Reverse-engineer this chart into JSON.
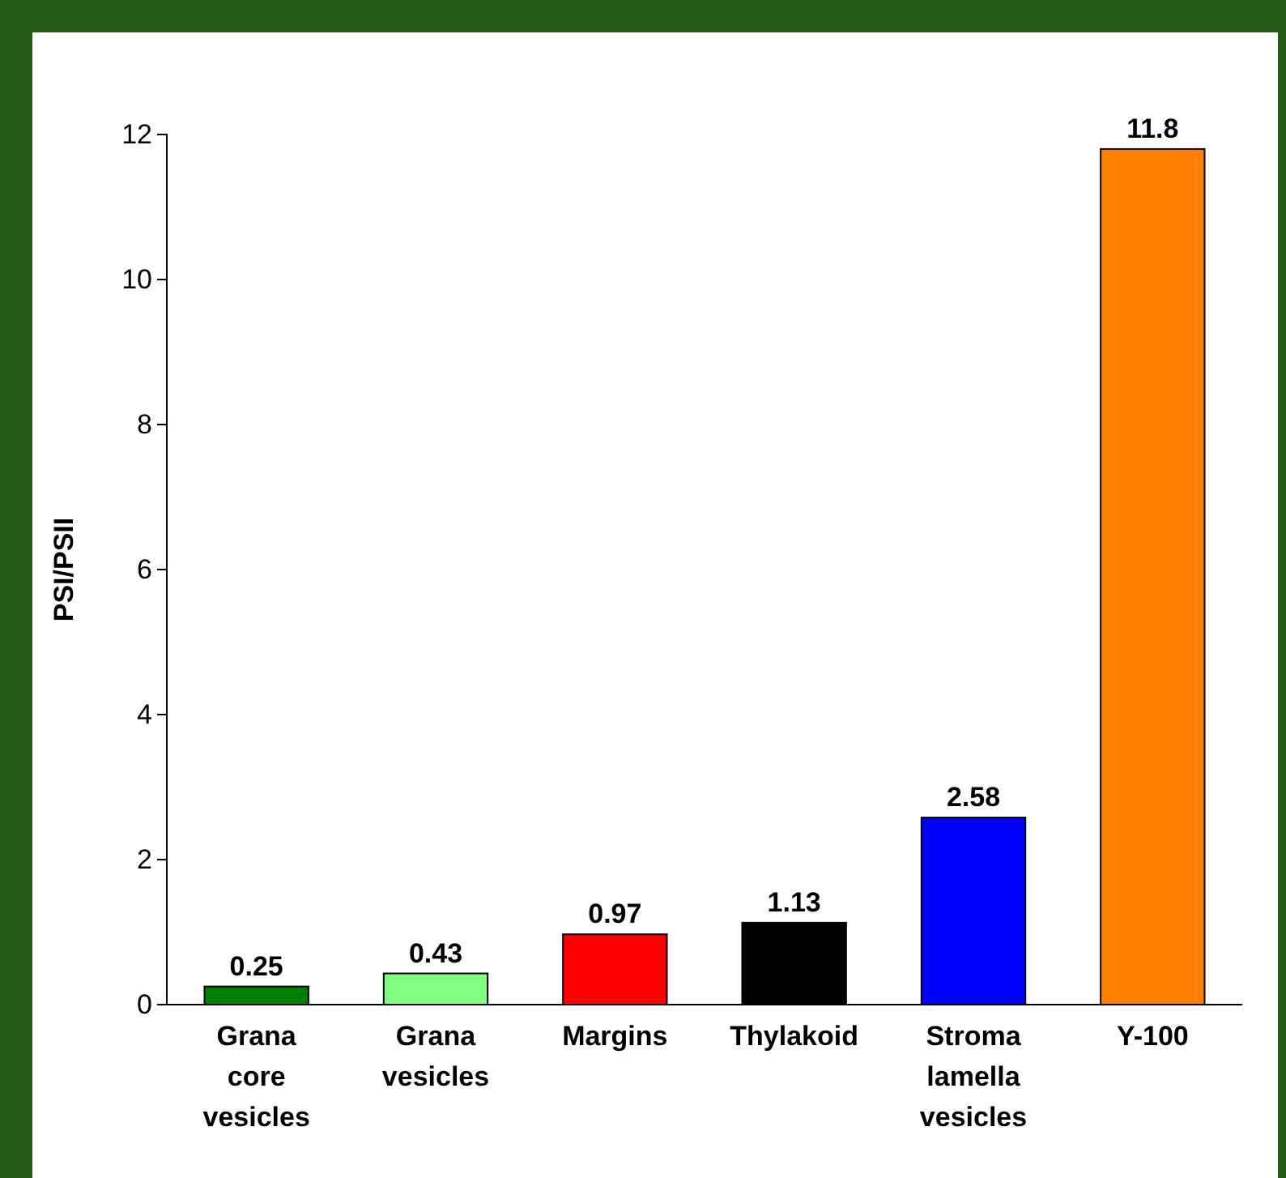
{
  "chart_data": {
    "type": "bar",
    "ylabel": "PSI/PSII",
    "categories": [
      "Grana core vesicles",
      "Grana vesicles",
      "Margins",
      "Thylakoid",
      "Stroma lamella vesicles",
      "Y-100"
    ],
    "values": [
      0.25,
      0.43,
      0.97,
      1.13,
      2.58,
      11.8
    ],
    "colors": [
      "#008000",
      "#80ff80",
      "#ff0000",
      "#000000",
      "#0000ff",
      "#ff8000"
    ],
    "ylim": [
      0,
      12
    ],
    "yticks": [
      0,
      2,
      4,
      6,
      8,
      10,
      12
    ],
    "data_labels": true
  }
}
